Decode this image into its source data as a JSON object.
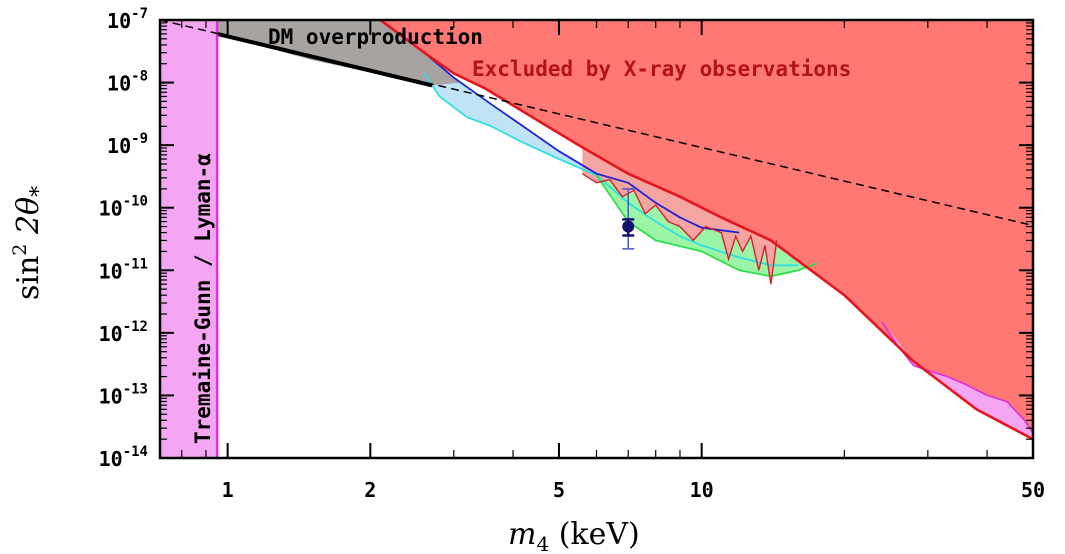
{
  "chart_data": {
    "type": "area",
    "xlabel_main": "m",
    "xlabel_sub": "4",
    "xlabel_unit": " (keV)",
    "ylabel_main": "sin",
    "ylabel_sup": "2",
    "ylabel_rest": " 2θ",
    "ylabel_sub": "*",
    "x_scale": "log",
    "y_scale": "log",
    "xlim": [
      0.72,
      50
    ],
    "ylim": [
      1e-14,
      1e-07
    ],
    "x_ticks": [
      {
        "value": 1,
        "label": "1"
      },
      {
        "value": 2,
        "label": "2"
      },
      {
        "value": 5,
        "label": "5"
      },
      {
        "value": 10,
        "label": "10"
      },
      {
        "value": 50,
        "label": "50"
      }
    ],
    "y_ticks": [
      {
        "value": 1e-07,
        "base": "10",
        "exp": "-7"
      },
      {
        "value": 1e-08,
        "base": "10",
        "exp": "-8"
      },
      {
        "value": 1e-09,
        "base": "10",
        "exp": "-9"
      },
      {
        "value": 1e-10,
        "base": "10",
        "exp": "-10"
      },
      {
        "value": 1e-11,
        "base": "10",
        "exp": "-11"
      },
      {
        "value": 1e-12,
        "base": "10",
        "exp": "-12"
      },
      {
        "value": 1e-13,
        "base": "10",
        "exp": "-13"
      },
      {
        "value": 1e-14,
        "base": "10",
        "exp": "-14"
      }
    ],
    "annotations": {
      "dm_overproduction": "DM overproduction",
      "xray": "Excluded by X-ray observations",
      "tremaine_gunn": "Tremaine-Gunn / Lyman-α"
    },
    "colors": {
      "xray_fill": "#ff7873",
      "xray_line": "#e8141b",
      "dm_fill": "#a6a3a0",
      "tg_fill": "#f5a6f2",
      "tg_line": "#e02ee0",
      "blue_fill": "#b2b4f4",
      "blue_line": "#1f22d6",
      "cyan_line": "#2fe0e0",
      "green_fill": "#9cf5a6",
      "pink_region": "#f5a6f2",
      "marker": "#101470"
    },
    "regions": {
      "tremaine_gunn_limit": 0.95,
      "xray_boundary": [
        [
          2.1,
          1e-07
        ],
        [
          2.6,
          3e-08
        ],
        [
          3.0,
          1.4e-08
        ],
        [
          3.5,
          8e-09
        ],
        [
          4.5,
          2.5e-09
        ],
        [
          5.5,
          1e-09
        ],
        [
          7,
          3.5e-10
        ],
        [
          9,
          1.5e-10
        ],
        [
          11,
          7e-11
        ],
        [
          14,
          3e-11
        ],
        [
          20,
          4e-12
        ],
        [
          28,
          3.5e-13
        ],
        [
          38,
          6e-14
        ],
        [
          50,
          2e-14
        ]
      ],
      "dm_overproduction_boundary": [
        [
          0.95,
          6e-08
        ],
        [
          1.5,
          2.3e-08
        ],
        [
          2.7,
          9e-09
        ],
        [
          3.1,
          1e-08
        ]
      ],
      "blue_curve": [
        [
          2.3,
          6e-08
        ],
        [
          2.6,
          3e-08
        ],
        [
          3.0,
          1.2e-08
        ],
        [
          3.6,
          4.5e-09
        ],
        [
          4.2,
          2e-09
        ],
        [
          5,
          8e-10
        ],
        [
          6,
          3.5e-10
        ],
        [
          7,
          2.5e-10
        ],
        [
          8,
          1.2e-10
        ],
        [
          9,
          7e-11
        ],
        [
          10,
          4.8e-11
        ],
        [
          12,
          4e-11
        ]
      ],
      "cyan_curve": [
        [
          2.6,
          1.4e-08
        ],
        [
          2.8,
          6e-09
        ],
        [
          3.2,
          2.8e-09
        ],
        [
          3.6,
          2e-09
        ],
        [
          4.2,
          1.1e-09
        ],
        [
          5,
          6e-10
        ],
        [
          6,
          3.3e-10
        ],
        [
          7,
          1.2e-10
        ],
        [
          8,
          6e-11
        ],
        [
          9,
          3.5e-11
        ],
        [
          10,
          2.5e-11
        ],
        [
          12,
          1.6e-11
        ],
        [
          14,
          1.2e-11
        ],
        [
          16,
          1.2e-11
        ]
      ],
      "green_curve": [
        [
          6,
          3.3e-10
        ],
        [
          7,
          6e-11
        ],
        [
          8,
          3e-11
        ],
        [
          10,
          2e-11
        ],
        [
          12,
          1e-11
        ],
        [
          14,
          8e-12
        ],
        [
          16,
          1e-11
        ],
        [
          17.5,
          1.3e-11
        ]
      ],
      "pink_region_left": 5.6,
      "red_wiggle": [
        [
          5.6,
          3.5e-10
        ],
        [
          6,
          2.5e-10
        ],
        [
          6.4,
          2.8e-10
        ],
        [
          6.8,
          1.5e-10
        ],
        [
          7.2,
          1.9e-10
        ],
        [
          7.6,
          8e-11
        ],
        [
          8,
          1.1e-10
        ],
        [
          8.5,
          6e-11
        ],
        [
          9,
          5e-11
        ],
        [
          9.6,
          3e-11
        ],
        [
          10.2,
          5e-11
        ],
        [
          11,
          4e-11
        ],
        [
          11.4,
          1.5e-11
        ],
        [
          11.8,
          3.5e-11
        ],
        [
          12.2,
          2e-11
        ],
        [
          12.7,
          3.5e-11
        ],
        [
          13.2,
          1e-11
        ],
        [
          13.6,
          2.5e-11
        ],
        [
          14,
          6e-12
        ],
        [
          14.4,
          3e-11
        ]
      ],
      "magenta_curve": [
        [
          24,
          1.5e-12
        ],
        [
          26,
          6e-13
        ],
        [
          28,
          3e-13
        ],
        [
          30,
          2.5e-13
        ],
        [
          33,
          2e-13
        ],
        [
          36,
          1.5e-13
        ],
        [
          40,
          1e-13
        ],
        [
          44,
          8e-14
        ],
        [
          48,
          4e-14
        ],
        [
          50,
          2.5e-14
        ]
      ],
      "dashed_line": [
        [
          0.72,
          1e-07
        ],
        [
          50,
          5.2e-11
        ]
      ],
      "dm_thick_line": [
        [
          0.95,
          6e-08
        ],
        [
          2.7,
          9e-09
        ]
      ]
    },
    "data_point": {
      "x": 7.0,
      "y": 5e-11,
      "y_low": 2.2e-11,
      "y_high": 2e-10,
      "y_inner_low": 3.6e-11,
      "y_inner_high": 6.5e-11
    }
  }
}
